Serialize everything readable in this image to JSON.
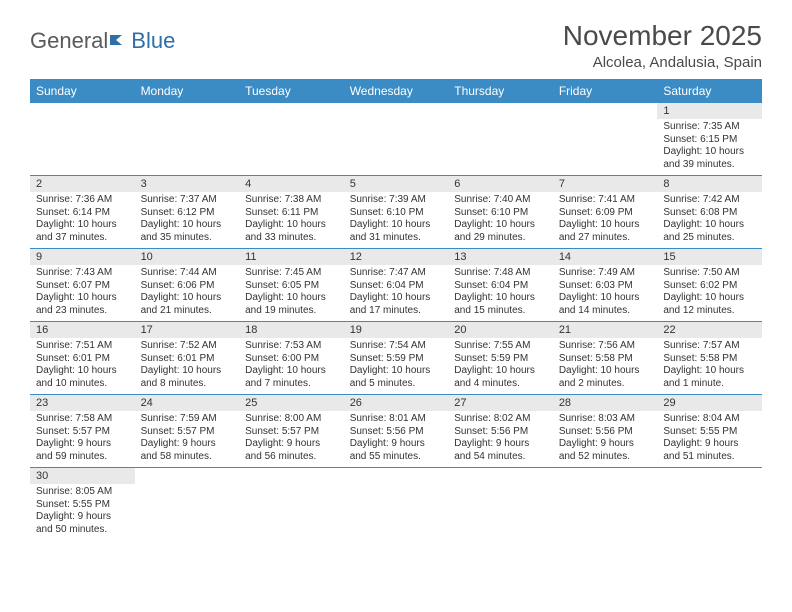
{
  "logo": {
    "part1": "General",
    "part2": "Blue"
  },
  "title": "November 2025",
  "location": "Alcolea, Andalusia, Spain",
  "colors": {
    "header_bg": "#3b8bc4",
    "header_text": "#ffffff",
    "daynum_bg": "#e9e9e9",
    "border": "#3b8bc4",
    "logo_gray": "#5a5a5a",
    "logo_blue": "#2f6fa7",
    "text": "#333333",
    "title_color": "#4a4a4a"
  },
  "weekdays": [
    "Sunday",
    "Monday",
    "Tuesday",
    "Wednesday",
    "Thursday",
    "Friday",
    "Saturday"
  ],
  "weeks": [
    [
      null,
      null,
      null,
      null,
      null,
      null,
      {
        "n": "1",
        "sr": "7:35 AM",
        "ss": "6:15 PM",
        "dl": "10 hours and 39 minutes."
      }
    ],
    [
      {
        "n": "2",
        "sr": "7:36 AM",
        "ss": "6:14 PM",
        "dl": "10 hours and 37 minutes."
      },
      {
        "n": "3",
        "sr": "7:37 AM",
        "ss": "6:12 PM",
        "dl": "10 hours and 35 minutes."
      },
      {
        "n": "4",
        "sr": "7:38 AM",
        "ss": "6:11 PM",
        "dl": "10 hours and 33 minutes."
      },
      {
        "n": "5",
        "sr": "7:39 AM",
        "ss": "6:10 PM",
        "dl": "10 hours and 31 minutes."
      },
      {
        "n": "6",
        "sr": "7:40 AM",
        "ss": "6:10 PM",
        "dl": "10 hours and 29 minutes."
      },
      {
        "n": "7",
        "sr": "7:41 AM",
        "ss": "6:09 PM",
        "dl": "10 hours and 27 minutes."
      },
      {
        "n": "8",
        "sr": "7:42 AM",
        "ss": "6:08 PM",
        "dl": "10 hours and 25 minutes."
      }
    ],
    [
      {
        "n": "9",
        "sr": "7:43 AM",
        "ss": "6:07 PM",
        "dl": "10 hours and 23 minutes."
      },
      {
        "n": "10",
        "sr": "7:44 AM",
        "ss": "6:06 PM",
        "dl": "10 hours and 21 minutes."
      },
      {
        "n": "11",
        "sr": "7:45 AM",
        "ss": "6:05 PM",
        "dl": "10 hours and 19 minutes."
      },
      {
        "n": "12",
        "sr": "7:47 AM",
        "ss": "6:04 PM",
        "dl": "10 hours and 17 minutes."
      },
      {
        "n": "13",
        "sr": "7:48 AM",
        "ss": "6:04 PM",
        "dl": "10 hours and 15 minutes."
      },
      {
        "n": "14",
        "sr": "7:49 AM",
        "ss": "6:03 PM",
        "dl": "10 hours and 14 minutes."
      },
      {
        "n": "15",
        "sr": "7:50 AM",
        "ss": "6:02 PM",
        "dl": "10 hours and 12 minutes."
      }
    ],
    [
      {
        "n": "16",
        "sr": "7:51 AM",
        "ss": "6:01 PM",
        "dl": "10 hours and 10 minutes."
      },
      {
        "n": "17",
        "sr": "7:52 AM",
        "ss": "6:01 PM",
        "dl": "10 hours and 8 minutes."
      },
      {
        "n": "18",
        "sr": "7:53 AM",
        "ss": "6:00 PM",
        "dl": "10 hours and 7 minutes."
      },
      {
        "n": "19",
        "sr": "7:54 AM",
        "ss": "5:59 PM",
        "dl": "10 hours and 5 minutes."
      },
      {
        "n": "20",
        "sr": "7:55 AM",
        "ss": "5:59 PM",
        "dl": "10 hours and 4 minutes."
      },
      {
        "n": "21",
        "sr": "7:56 AM",
        "ss": "5:58 PM",
        "dl": "10 hours and 2 minutes."
      },
      {
        "n": "22",
        "sr": "7:57 AM",
        "ss": "5:58 PM",
        "dl": "10 hours and 1 minute."
      }
    ],
    [
      {
        "n": "23",
        "sr": "7:58 AM",
        "ss": "5:57 PM",
        "dl": "9 hours and 59 minutes."
      },
      {
        "n": "24",
        "sr": "7:59 AM",
        "ss": "5:57 PM",
        "dl": "9 hours and 58 minutes."
      },
      {
        "n": "25",
        "sr": "8:00 AM",
        "ss": "5:57 PM",
        "dl": "9 hours and 56 minutes."
      },
      {
        "n": "26",
        "sr": "8:01 AM",
        "ss": "5:56 PM",
        "dl": "9 hours and 55 minutes."
      },
      {
        "n": "27",
        "sr": "8:02 AM",
        "ss": "5:56 PM",
        "dl": "9 hours and 54 minutes."
      },
      {
        "n": "28",
        "sr": "8:03 AM",
        "ss": "5:56 PM",
        "dl": "9 hours and 52 minutes."
      },
      {
        "n": "29",
        "sr": "8:04 AM",
        "ss": "5:55 PM",
        "dl": "9 hours and 51 minutes."
      }
    ],
    [
      {
        "n": "30",
        "sr": "8:05 AM",
        "ss": "5:55 PM",
        "dl": "9 hours and 50 minutes."
      },
      null,
      null,
      null,
      null,
      null,
      null
    ]
  ],
  "labels": {
    "sunrise": "Sunrise:",
    "sunset": "Sunset:",
    "daylight": "Daylight:"
  }
}
